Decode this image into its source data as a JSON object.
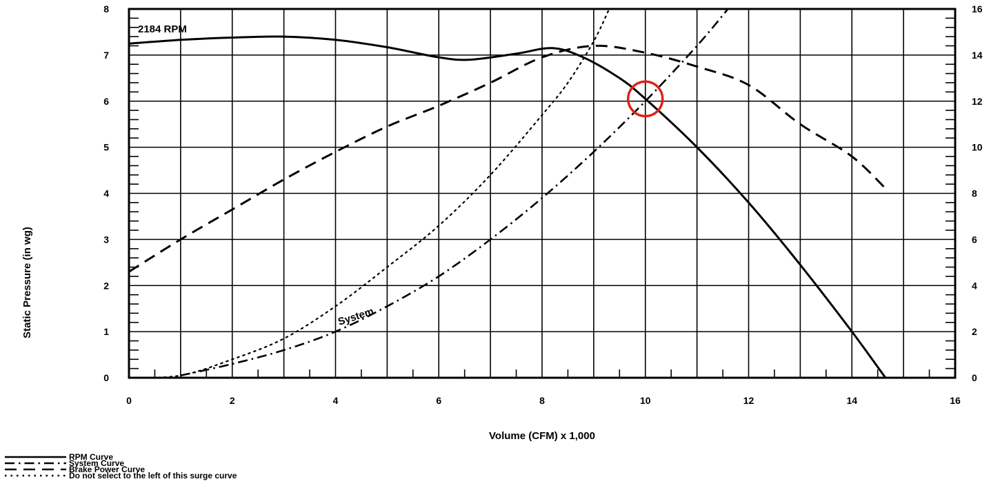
{
  "chart_data": {
    "type": "line",
    "title": "",
    "xlabel": "Volume (CFM) x 1,000",
    "ylabel": "Static Pressure (in wg)",
    "y2label": "",
    "xlim": [
      0,
      16
    ],
    "ylim": [
      0,
      8
    ],
    "y2lim": [
      0,
      16
    ],
    "x_ticks": [
      "0",
      "2",
      "4",
      "6",
      "8",
      "10",
      "12",
      "14",
      "16"
    ],
    "y_ticks": [
      "0",
      "1",
      "2",
      "3",
      "4",
      "5",
      "6",
      "7",
      "8"
    ],
    "y2_ticks": [
      "0",
      "2",
      "4",
      "6",
      "8",
      "10",
      "12",
      "14",
      "16"
    ],
    "grid": true,
    "legend_position": "bottom-left",
    "series": [
      {
        "name": "RPM Curve",
        "axis": "left",
        "style": "solid",
        "x": [
          0,
          1,
          2,
          3,
          4,
          5,
          6,
          6.6,
          7.5,
          8.2,
          8.8,
          9.5,
          10,
          11,
          12,
          13,
          14,
          14.65
        ],
        "y": [
          7.25,
          7.33,
          7.38,
          7.4,
          7.33,
          7.17,
          6.95,
          6.9,
          7.03,
          7.15,
          6.95,
          6.5,
          6.05,
          5.0,
          3.8,
          2.45,
          1.0,
          0
        ]
      },
      {
        "name": "System Curve",
        "axis": "left",
        "style": "dash-dot",
        "x": [
          1,
          2,
          3,
          4,
          5,
          6,
          7,
          8,
          9,
          10,
          11,
          11.6
        ],
        "y": [
          0.05,
          0.3,
          0.6,
          1.0,
          1.55,
          2.2,
          3.0,
          3.9,
          4.9,
          6.0,
          7.2,
          8.0
        ]
      },
      {
        "name": "Brake Power Curve",
        "axis": "right",
        "style": "dashed",
        "x": [
          0,
          1,
          2,
          3,
          4,
          5,
          6,
          7,
          8,
          9,
          10,
          11,
          12,
          13,
          14,
          14.7
        ],
        "y": [
          4.6,
          6.0,
          7.3,
          8.6,
          9.8,
          10.9,
          11.8,
          12.8,
          13.9,
          14.4,
          14.1,
          13.5,
          12.7,
          11.0,
          9.6,
          8.1
        ]
      },
      {
        "name": "Do not select to the left of this surge curve",
        "axis": "left",
        "style": "dotted",
        "x": [
          0,
          1,
          2,
          3,
          4,
          5,
          6,
          7,
          8,
          8.5,
          9,
          9.3
        ],
        "y": [
          0,
          0.05,
          0.4,
          0.85,
          1.55,
          2.4,
          3.3,
          4.4,
          5.7,
          6.4,
          7.3,
          8.0
        ]
      }
    ],
    "annotations": {
      "rpm_label": "2184 RPM",
      "system_label": "System",
      "highlight_point": {
        "x": 10,
        "y": 6.05,
        "marker": "red circle"
      }
    },
    "colors": {
      "lines": "#000000",
      "highlight": "#e0201a",
      "background": "#ffffff"
    }
  }
}
